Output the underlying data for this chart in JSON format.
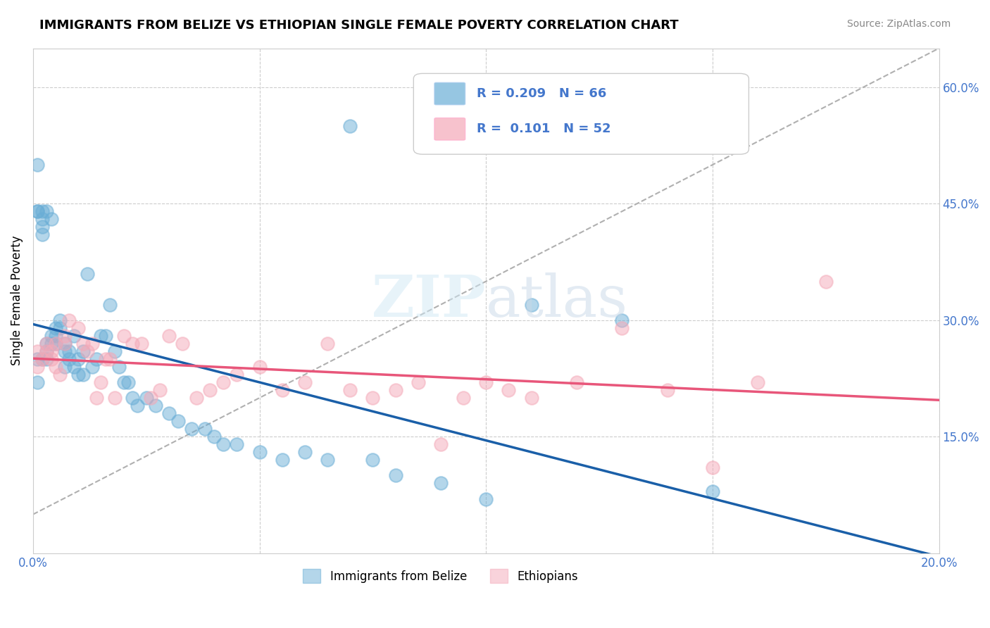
{
  "title": "IMMIGRANTS FROM BELIZE VS ETHIOPIAN SINGLE FEMALE POVERTY CORRELATION CHART",
  "source": "Source: ZipAtlas.com",
  "xlabel": "",
  "ylabel": "Single Female Poverty",
  "xlim": [
    0.0,
    0.2
  ],
  "ylim": [
    0.0,
    0.65
  ],
  "x_ticks": [
    0.0,
    0.05,
    0.1,
    0.15,
    0.2
  ],
  "x_tick_labels": [
    "0.0%",
    "",
    "",
    "",
    "20.0%"
  ],
  "y_ticks_right": [
    0.15,
    0.3,
    0.45,
    0.6
  ],
  "y_tick_labels_right": [
    "15.0%",
    "30.0%",
    "45.0%",
    "60.0%"
  ],
  "belize_R": 0.209,
  "belize_N": 66,
  "ethiopian_R": 0.101,
  "ethiopian_N": 52,
  "belize_color": "#6aaed6",
  "ethiopian_color": "#f4a9b8",
  "belize_line_color": "#1a5fa8",
  "ethiopian_line_color": "#e8567a",
  "diagonal_color": "#b0b0b0",
  "watermark": "ZIPatlas",
  "legend_entries": [
    "Immigrants from Belize",
    "Ethiopians"
  ],
  "belize_x": [
    0.001,
    0.001,
    0.001,
    0.001,
    0.002,
    0.002,
    0.002,
    0.002,
    0.002,
    0.003,
    0.003,
    0.003,
    0.003,
    0.004,
    0.004,
    0.004,
    0.005,
    0.005,
    0.005,
    0.006,
    0.006,
    0.007,
    0.007,
    0.007,
    0.008,
    0.008,
    0.009,
    0.009,
    0.01,
    0.01,
    0.011,
    0.011,
    0.012,
    0.013,
    0.014,
    0.015,
    0.016,
    0.017,
    0.018,
    0.019,
    0.02,
    0.021,
    0.022,
    0.023,
    0.025,
    0.027,
    0.03,
    0.032,
    0.035,
    0.038,
    0.04,
    0.042,
    0.045,
    0.05,
    0.055,
    0.06,
    0.065,
    0.07,
    0.075,
    0.08,
    0.09,
    0.1,
    0.11,
    0.13,
    0.15,
    0.001
  ],
  "belize_y": [
    0.25,
    0.22,
    0.44,
    0.44,
    0.44,
    0.43,
    0.42,
    0.41,
    0.25,
    0.44,
    0.27,
    0.26,
    0.25,
    0.43,
    0.28,
    0.27,
    0.29,
    0.28,
    0.27,
    0.29,
    0.3,
    0.27,
    0.26,
    0.24,
    0.26,
    0.25,
    0.28,
    0.24,
    0.25,
    0.23,
    0.26,
    0.23,
    0.36,
    0.24,
    0.25,
    0.28,
    0.28,
    0.32,
    0.26,
    0.24,
    0.22,
    0.22,
    0.2,
    0.19,
    0.2,
    0.19,
    0.18,
    0.17,
    0.16,
    0.16,
    0.15,
    0.14,
    0.14,
    0.13,
    0.12,
    0.13,
    0.12,
    0.55,
    0.12,
    0.1,
    0.09,
    0.07,
    0.32,
    0.3,
    0.08,
    0.5
  ],
  "ethiopian_x": [
    0.001,
    0.002,
    0.003,
    0.003,
    0.004,
    0.004,
    0.005,
    0.005,
    0.006,
    0.007,
    0.007,
    0.008,
    0.01,
    0.011,
    0.012,
    0.013,
    0.014,
    0.015,
    0.016,
    0.017,
    0.018,
    0.02,
    0.022,
    0.024,
    0.026,
    0.028,
    0.03,
    0.033,
    0.036,
    0.039,
    0.042,
    0.045,
    0.05,
    0.055,
    0.06,
    0.065,
    0.07,
    0.075,
    0.08,
    0.085,
    0.09,
    0.095,
    0.1,
    0.105,
    0.11,
    0.12,
    0.13,
    0.14,
    0.15,
    0.16,
    0.175,
    0.001
  ],
  "ethiopian_y": [
    0.26,
    0.25,
    0.26,
    0.27,
    0.25,
    0.26,
    0.27,
    0.24,
    0.23,
    0.28,
    0.27,
    0.3,
    0.29,
    0.27,
    0.26,
    0.27,
    0.2,
    0.22,
    0.25,
    0.25,
    0.2,
    0.28,
    0.27,
    0.27,
    0.2,
    0.21,
    0.28,
    0.27,
    0.2,
    0.21,
    0.22,
    0.23,
    0.24,
    0.21,
    0.22,
    0.27,
    0.21,
    0.2,
    0.21,
    0.22,
    0.14,
    0.2,
    0.22,
    0.21,
    0.2,
    0.22,
    0.29,
    0.21,
    0.11,
    0.22,
    0.35,
    0.24
  ]
}
